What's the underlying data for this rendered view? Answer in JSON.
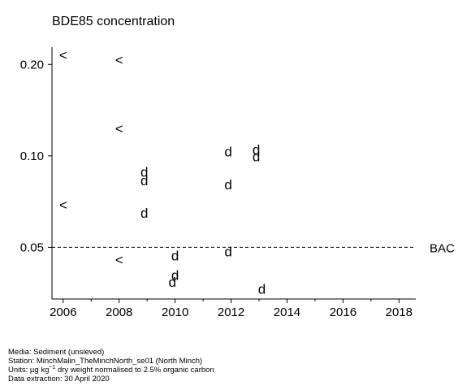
{
  "chart_data": {
    "type": "scatter",
    "title": "BDE85 concentration",
    "y_scale": "log",
    "xlim": [
      2005.6,
      2018.6
    ],
    "ylim": [
      0.0338,
      0.228
    ],
    "x_ticks": [
      2006,
      2008,
      2010,
      2012,
      2014,
      2016,
      2018
    ],
    "x_tick_labels": [
      "2006",
      "2008",
      "2010",
      "2012",
      "2014",
      "2016",
      "2018"
    ],
    "y_ticks": [
      0.05,
      0.1,
      0.2
    ],
    "y_tick_labels": [
      "0.05",
      "0.10",
      "0.20"
    ],
    "reference_line": {
      "label": "BAC",
      "value": 0.05,
      "style": "dashed"
    },
    "series": [
      {
        "marker": "<",
        "points": [
          {
            "x": 2006.0,
            "y": 0.215
          },
          {
            "x": 2006.0,
            "y": 0.069
          },
          {
            "x": 2008.0,
            "y": 0.207
          },
          {
            "x": 2008.0,
            "y": 0.123
          },
          {
            "x": 2008.0,
            "y": 0.0455
          }
        ]
      },
      {
        "marker": "d",
        "points": [
          {
            "x": 2008.9,
            "y": 0.0885
          },
          {
            "x": 2008.9,
            "y": 0.083
          },
          {
            "x": 2008.9,
            "y": 0.065
          },
          {
            "x": 2010.0,
            "y": 0.047
          },
          {
            "x": 2010.0,
            "y": 0.0405
          },
          {
            "x": 2009.9,
            "y": 0.0385
          },
          {
            "x": 2011.9,
            "y": 0.1035
          },
          {
            "x": 2011.9,
            "y": 0.0805
          },
          {
            "x": 2011.9,
            "y": 0.0485
          },
          {
            "x": 2012.9,
            "y": 0.105
          },
          {
            "x": 2012.9,
            "y": 0.0995
          },
          {
            "x": 2013.1,
            "y": 0.0365
          }
        ]
      }
    ]
  },
  "footer": {
    "media": "Media: Sediment (unsieved)",
    "station": "Station: MinchMalin_TheMinchNorth_se01 (North Minch)",
    "units_prefix": "Units:  µg kg",
    "units_exponent": "−1",
    "units_suffix": " dry weight normalised to 2.5% organic carbon",
    "extraction": "Data extraction: 30 April 2020"
  }
}
